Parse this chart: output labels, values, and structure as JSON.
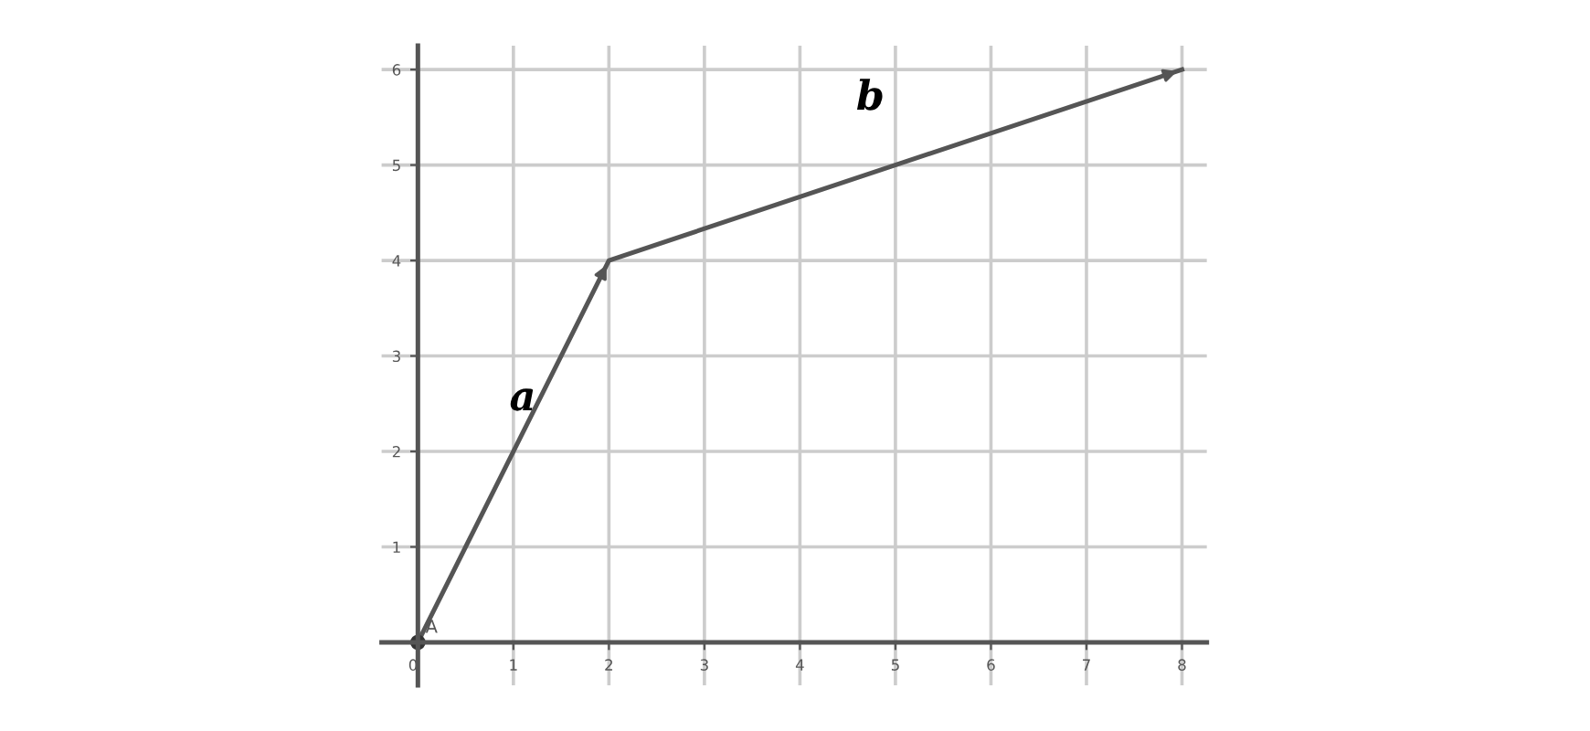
{
  "chart_data": {
    "type": "line",
    "x": [
      0,
      2,
      8
    ],
    "series": [
      {
        "color": "#555555",
        "values": [
          0,
          4,
          6
        ]
      }
    ],
    "xlim": [
      -0.38,
      8.26
    ],
    "ylim": [
      -0.45,
      6.25
    ],
    "xticks": [
      0,
      1,
      2,
      3,
      4,
      5,
      6,
      7,
      8
    ],
    "yticks": [
      1,
      2,
      3,
      4,
      5,
      6
    ],
    "grid": true,
    "marker": "none",
    "line_style": "solid",
    "annotations": [
      {
        "text": "A",
        "x": 0,
        "y": 0
      },
      "a",
      "b"
    ]
  }
}
